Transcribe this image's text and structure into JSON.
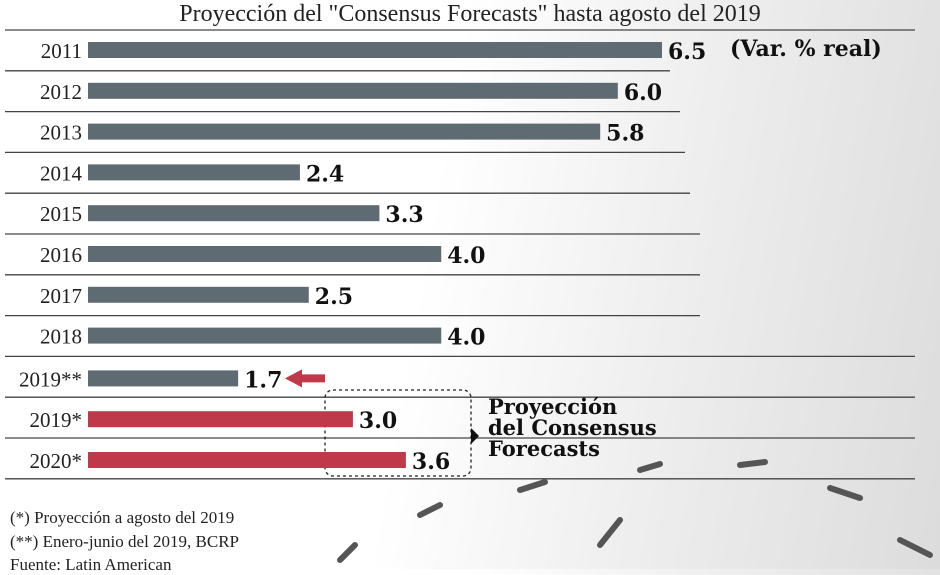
{
  "chart_data": {
    "type": "bar",
    "orientation": "horizontal",
    "title": "Proyección del \"Consensus Forecasts\" hasta agosto del 2019",
    "unit_label": "(Var. % real)",
    "categories": [
      "2011",
      "2012",
      "2013",
      "2014",
      "2015",
      "2016",
      "2017",
      "2018",
      "2019**",
      "2019*",
      "2020*"
    ],
    "values": [
      6.5,
      6.0,
      5.8,
      2.4,
      3.3,
      4.0,
      2.5,
      4.0,
      1.7,
      3.0,
      3.6
    ],
    "value_labels": [
      "6.5",
      "6.0",
      "5.8",
      "2.4",
      "3.3",
      "4.0",
      "2.5",
      "4.0",
      "1.7",
      "3.0",
      "3.6"
    ],
    "highlighted": [
      false,
      false,
      false,
      false,
      false,
      false,
      false,
      false,
      false,
      true,
      true
    ],
    "annotation": "Proyección del Consensus Forecasts",
    "xlim": [
      0,
      6.5
    ],
    "colors": {
      "actual": "#5f6b72",
      "projection": "#c0394a",
      "arrow": "#c0394a"
    }
  },
  "notes": [
    "(*) Proyección a agosto del 2019",
    "(**) Enero-junio del 2019, BCRP",
    "Fuente: Latin American"
  ]
}
